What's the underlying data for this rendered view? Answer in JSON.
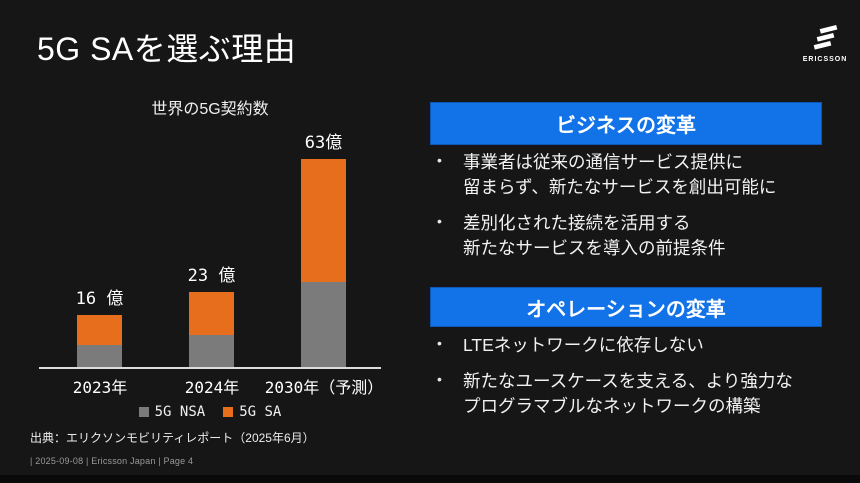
{
  "slide": {
    "title": "5G SAを選ぶ理由",
    "logo": {
      "brand": "ERICSSON",
      "icon": "ericsson-three-bars-logo"
    },
    "source": "出典：エリクソンモビリティレポート（2025年6月）",
    "footer": "| 2025-09-08 | Ericsson Japan | Page 4"
  },
  "chart_data": {
    "type": "bar",
    "stacked": true,
    "title": "世界の5G契約数",
    "unit": "億 (billions of subscriptions)",
    "categories": [
      "2023年",
      "2024年",
      "2030年（予測）"
    ],
    "series": [
      {
        "name": "5G NSA",
        "color": "#7b7b7b",
        "values": [
          7,
          10,
          26
        ]
      },
      {
        "name": "5G SA",
        "color": "#e66e1c",
        "values": [
          9,
          13,
          37
        ]
      }
    ],
    "totals": [
      16,
      23,
      63
    ],
    "total_labels": [
      "16 億",
      "23 億",
      "63億"
    ],
    "ylim": [
      0,
      65
    ],
    "grid": false,
    "legend_position": "bottom"
  },
  "sections": [
    {
      "header": "ビジネスの変革",
      "bullets": [
        "事業者は従来の通信サービス提供に\n留まらず、新たなサービスを創出可能に",
        "差別化された接続を活用する\n新たなサービスを導入の前提条件"
      ]
    },
    {
      "header": "オペレーションの変革",
      "bullets": [
        "LTEネットワークに依存しない",
        "新たなユースケースを支える、より強力な\nプログラマブルなネットワークの構築"
      ]
    }
  ],
  "colors": {
    "background": "#161616",
    "panel_blue": "#1272e8",
    "bar_gray": "#7b7b7b",
    "bar_orange": "#e66e1c",
    "axis": "#dcdcdc",
    "footer_text": "#9a9a9a"
  }
}
